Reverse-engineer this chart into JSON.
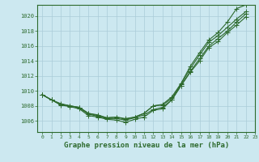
{
  "title": "Graphe pression niveau de la mer (hPa)",
  "background_color": "#cce8f0",
  "grid_color": "#aaccd8",
  "line_color": "#2d6a2d",
  "xlim": [
    -0.5,
    23
  ],
  "ylim": [
    1004.5,
    1021.5
  ],
  "yticks": [
    1006,
    1008,
    1010,
    1012,
    1014,
    1016,
    1018,
    1020
  ],
  "xticks": [
    0,
    1,
    2,
    3,
    4,
    5,
    6,
    7,
    8,
    9,
    10,
    11,
    12,
    13,
    14,
    15,
    16,
    17,
    18,
    19,
    20,
    21,
    22,
    23
  ],
  "series": [
    {
      "x": [
        0,
        1,
        2,
        3,
        4,
        5,
        6,
        7,
        8,
        9,
        10,
        11,
        12,
        13,
        14,
        15,
        16,
        17,
        18,
        19,
        20,
        21,
        22
      ],
      "y": [
        1009.5,
        1008.8,
        1008.3,
        1008.0,
        1007.8,
        1007.0,
        1006.8,
        1006.4,
        1006.5,
        1006.3,
        1006.5,
        1007.0,
        1008.0,
        1008.2,
        1009.2,
        1011.0,
        1013.3,
        1015.1,
        1016.8,
        1017.8,
        1019.2,
        1021.0,
        1021.5
      ]
    },
    {
      "x": [
        0,
        1,
        2,
        3,
        4,
        5,
        6,
        7,
        8,
        9,
        10,
        11,
        12,
        13,
        14,
        15,
        16,
        17,
        18,
        19,
        20,
        21,
        22
      ],
      "y": [
        1009.5,
        1008.8,
        1008.2,
        1008.0,
        1007.8,
        1007.0,
        1006.7,
        1006.4,
        1006.5,
        1006.2,
        1006.5,
        1007.0,
        1008.0,
        1008.1,
        1009.0,
        1010.9,
        1013.0,
        1014.8,
        1016.5,
        1017.4,
        1018.5,
        1019.6,
        1020.6
      ]
    },
    {
      "x": [
        0,
        1,
        2,
        3,
        4,
        5,
        6,
        7,
        8,
        9,
        10,
        11,
        12,
        13,
        14,
        15,
        16,
        17,
        18,
        19,
        20,
        21,
        22
      ],
      "y": [
        1009.5,
        1008.8,
        1008.2,
        1008.0,
        1007.7,
        1006.9,
        1006.6,
        1006.3,
        1006.3,
        1006.1,
        1006.4,
        1006.8,
        1007.5,
        1007.8,
        1008.8,
        1010.7,
        1012.6,
        1014.3,
        1016.0,
        1017.0,
        1018.0,
        1019.2,
        1020.3
      ]
    },
    {
      "x": [
        0,
        1,
        2,
        3,
        4,
        5,
        6,
        7,
        8,
        9,
        10,
        11,
        12,
        13,
        14,
        15,
        16,
        17,
        18,
        19,
        20,
        21,
        22
      ],
      "y": [
        1009.5,
        1008.8,
        1008.1,
        1007.9,
        1007.6,
        1006.7,
        1006.5,
        1006.2,
        1006.1,
        1005.8,
        1006.2,
        1006.5,
        1007.4,
        1007.6,
        1008.8,
        1010.7,
        1012.5,
        1014.0,
        1015.8,
        1016.6,
        1017.8,
        1018.8,
        1019.9
      ]
    }
  ],
  "ylabel_fontsize": 5.5,
  "xlabel_fontsize": 5.5,
  "title_fontsize": 6.5
}
